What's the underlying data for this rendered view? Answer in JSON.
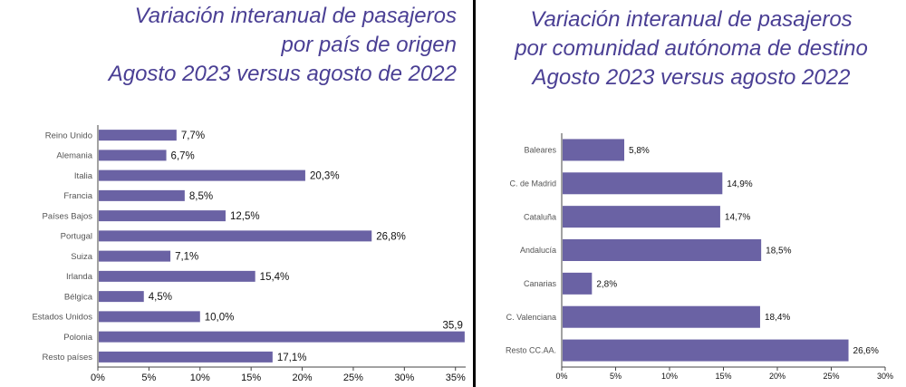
{
  "chart_data": [
    {
      "type": "bar",
      "orientation": "horizontal",
      "title_lines": [
        "Variación interanual de pasajeros",
        "por país de origen",
        "Agosto 2023 versus agosto de 2022"
      ],
      "categories": [
        "Reino Unido",
        "Alemania",
        "Italia",
        "Francia",
        "Países Bajos",
        "Portugal",
        "Suiza",
        "Irlanda",
        "Bélgica",
        "Estados Unidos",
        "Polonia",
        "Resto países"
      ],
      "values": [
        7.7,
        6.7,
        20.3,
        8.5,
        12.5,
        26.8,
        7.1,
        15.4,
        4.5,
        10.0,
        35.9,
        17.1
      ],
      "value_labels": [
        "7,7%",
        "6,7%",
        "20,3%",
        "8,5%",
        "12,5%",
        "26,8%",
        "7,1%",
        "15,4%",
        "4,5%",
        "10,0%",
        "35,9",
        "17,1%"
      ],
      "xlim": [
        0,
        36
      ],
      "xticks": [
        0,
        5,
        10,
        15,
        20,
        25,
        30,
        35
      ],
      "xtick_labels": [
        "0%",
        "5%",
        "10%",
        "15%",
        "20%",
        "25%",
        "30%",
        "35%"
      ],
      "bar_color": "#6a62a4",
      "grid": false
    },
    {
      "type": "bar",
      "orientation": "horizontal",
      "title_lines": [
        "Variación interanual de pasajeros",
        "por comunidad autónoma de destino",
        "Agosto 2023 versus agosto 2022"
      ],
      "categories": [
        "Baleares",
        "C. de Madrid",
        "Cataluña",
        "Andalucía",
        "Canarias",
        "C. Valenciana",
        "Resto CC.AA."
      ],
      "values": [
        5.8,
        14.9,
        14.7,
        18.5,
        2.8,
        18.4,
        26.6
      ],
      "value_labels": [
        "5,8%",
        "14,9%",
        "14,7%",
        "18,5%",
        "2,8%",
        "18,4%",
        "26,6%"
      ],
      "xlim": [
        0,
        30
      ],
      "xticks": [
        0,
        5,
        10,
        15,
        20,
        25,
        30
      ],
      "xtick_labels": [
        "0%",
        "5%",
        "10%",
        "15%",
        "20%",
        "25%",
        "30%"
      ],
      "bar_color": "#6a62a4",
      "grid": false
    }
  ]
}
